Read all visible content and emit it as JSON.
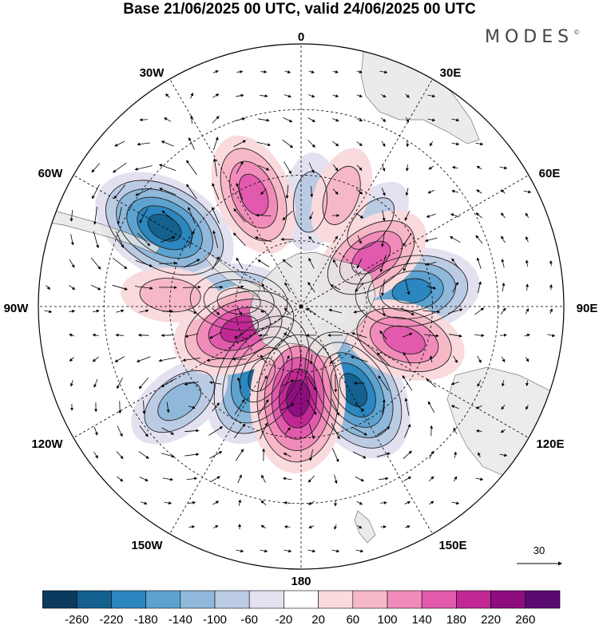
{
  "title": "Base 21/06/2025 00 UTC, valid 24/06/2025 00 UTC",
  "brand": "MODES",
  "brand_mark": "©",
  "longitude_labels": {
    "lon_0": "0",
    "lon_30e": "30E",
    "lon_60e": "60E",
    "lon_90e": "90E",
    "lon_120e": "120E",
    "lon_150e": "150E",
    "lon_180": "180",
    "lon_150w": "150W",
    "lon_120w": "120W",
    "lon_90w": "90W",
    "lon_60w": "60W",
    "lon_30w": "30W"
  },
  "vector_reference": "30",
  "colorbar": {
    "ticks": [
      "-260",
      "-220",
      "-180",
      "-140",
      "-100",
      "-60",
      "-20",
      "20",
      "60",
      "100",
      "140",
      "180",
      "220",
      "260"
    ],
    "colors": [
      "#0b3a5e",
      "#14618f",
      "#2c86bf",
      "#5ea3cf",
      "#8fb8da",
      "#bccbe4",
      "#e3e1ef",
      "#ffffff",
      "#f9dadd",
      "#f6b8c7",
      "#f18cba",
      "#e25aad",
      "#c22895",
      "#8e0e80",
      "#5a0b72"
    ]
  },
  "anomaly_features": [
    {
      "sign": "negative",
      "level": -220,
      "lon_deg": 300,
      "colat_deg": 48
    },
    {
      "sign": "negative",
      "level": -140,
      "lon_deg": 275,
      "colat_deg": 19
    },
    {
      "sign": "negative",
      "level": -220,
      "lon_deg": 210,
      "colat_deg": 24
    },
    {
      "sign": "negative",
      "level": -220,
      "lon_deg": 148,
      "colat_deg": 30
    },
    {
      "sign": "negative",
      "level": -180,
      "lon_deg": 82,
      "colat_deg": 34
    },
    {
      "sign": "negative",
      "level": -60,
      "lon_deg": 40,
      "colat_deg": 33
    },
    {
      "sign": "negative",
      "level": -60,
      "lon_deg": 5,
      "colat_deg": 32
    },
    {
      "sign": "negative",
      "level": -100,
      "lon_deg": 232,
      "colat_deg": 47
    },
    {
      "sign": "positive",
      "level": 220,
      "lon_deg": 182,
      "colat_deg": 28
    },
    {
      "sign": "positive",
      "level": 180,
      "lon_deg": 250,
      "colat_deg": 20
    },
    {
      "sign": "positive",
      "level": 140,
      "lon_deg": 108,
      "colat_deg": 33
    },
    {
      "sign": "positive",
      "level": 140,
      "lon_deg": 55,
      "colat_deg": 26
    },
    {
      "sign": "positive",
      "level": 140,
      "lon_deg": 337,
      "colat_deg": 37
    },
    {
      "sign": "positive",
      "level": 60,
      "lon_deg": 20,
      "colat_deg": 36
    },
    {
      "sign": "positive",
      "level": 60,
      "lon_deg": 275,
      "colat_deg": 40
    }
  ]
}
